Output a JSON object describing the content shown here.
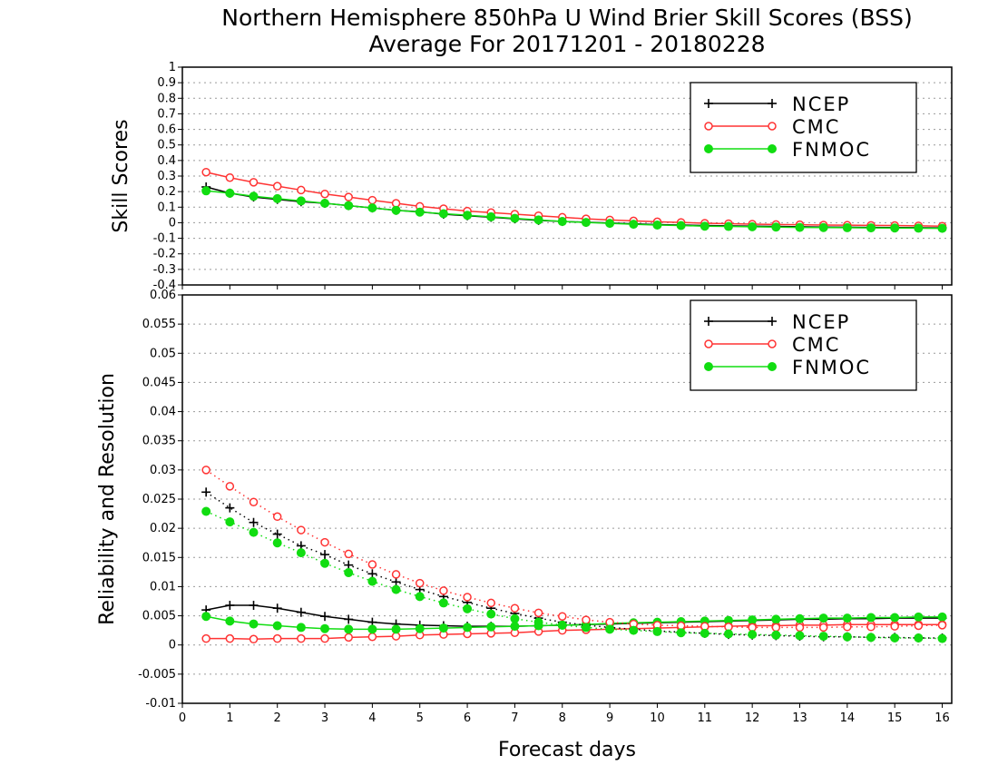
{
  "title_line1": "Northern Hemisphere 850hPa U Wind Brier Skill Scores (BSS)",
  "title_line2": "Average For 20171201 - 20180228",
  "xlabel": "Forecast days",
  "colors": {
    "NCEP": "#000000",
    "CMC": "#ff3333",
    "FNMOC": "#11dd11"
  },
  "chart_data": [
    {
      "type": "line",
      "ylabel": "Skill Scores",
      "xlim": [
        0,
        16.2
      ],
      "ylim": [
        -0.4,
        1
      ],
      "x_ticks": [
        0,
        1,
        2,
        3,
        4,
        5,
        6,
        7,
        8,
        9,
        10,
        11,
        12,
        13,
        14,
        15,
        16
      ],
      "y_ticks": [
        -0.4,
        -0.3,
        -0.2,
        -0.1,
        0,
        0.1,
        0.2,
        0.3,
        0.4,
        0.5,
        0.6,
        0.7,
        0.8,
        0.9,
        1
      ],
      "y_tick_labels": [
        "-0.4",
        "-0.3",
        "-0.2",
        "-0.1",
        "0",
        "0.1",
        "0.2",
        "0.3",
        "0.4",
        "0.5",
        "0.6",
        "0.7",
        "0.8",
        "0.9",
        "1"
      ],
      "grid": true,
      "legend": "top-right",
      "x": [
        0.5,
        1,
        1.5,
        2,
        2.5,
        3,
        3.5,
        4,
        4.5,
        5,
        5.5,
        6,
        6.5,
        7,
        7.5,
        8,
        8.5,
        9,
        9.5,
        10,
        10.5,
        11,
        11.5,
        12,
        12.5,
        13,
        13.5,
        14,
        14.5,
        15,
        15.5,
        16
      ],
      "series": [
        {
          "name": "NCEP",
          "marker": "plus",
          "style": "solid",
          "values": [
            0.23,
            0.19,
            0.165,
            0.15,
            0.135,
            0.125,
            0.11,
            0.095,
            0.08,
            0.07,
            0.055,
            0.045,
            0.035,
            0.025,
            0.015,
            0.008,
            0.003,
            -0.002,
            -0.007,
            -0.012,
            -0.015,
            -0.018,
            -0.02,
            -0.022,
            -0.024,
            -0.026,
            -0.028,
            -0.029,
            -0.03,
            -0.031,
            -0.032,
            -0.033
          ]
        },
        {
          "name": "CMC",
          "marker": "circle-open",
          "style": "solid",
          "values": [
            0.325,
            0.29,
            0.26,
            0.235,
            0.21,
            0.185,
            0.165,
            0.145,
            0.125,
            0.105,
            0.09,
            0.075,
            0.065,
            0.055,
            0.045,
            0.035,
            0.025,
            0.018,
            0.012,
            0.006,
            0.002,
            -0.003,
            -0.006,
            -0.009,
            -0.011,
            -0.013,
            -0.015,
            -0.016,
            -0.017,
            -0.018,
            -0.02,
            -0.022
          ]
        },
        {
          "name": "FNMOC",
          "marker": "circle-filled",
          "style": "solid",
          "values": [
            0.205,
            0.19,
            0.17,
            0.155,
            0.14,
            0.125,
            0.11,
            0.095,
            0.08,
            0.068,
            0.058,
            0.048,
            0.038,
            0.028,
            0.018,
            0.008,
            0.002,
            -0.004,
            -0.01,
            -0.015,
            -0.018,
            -0.022,
            -0.024,
            -0.026,
            -0.028,
            -0.03,
            -0.031,
            -0.032,
            -0.033,
            -0.034,
            -0.035,
            -0.036
          ]
        }
      ]
    },
    {
      "type": "line",
      "ylabel": "Reliability and Resolution",
      "xlim": [
        0,
        16.2
      ],
      "ylim": [
        -0.01,
        0.06
      ],
      "x_ticks": [
        0,
        1,
        2,
        3,
        4,
        5,
        6,
        7,
        8,
        9,
        10,
        11,
        12,
        13,
        14,
        15,
        16
      ],
      "y_ticks": [
        -0.01,
        -0.005,
        0,
        0.005,
        0.01,
        0.015,
        0.02,
        0.025,
        0.03,
        0.035,
        0.04,
        0.045,
        0.05,
        0.055,
        0.06
      ],
      "y_tick_labels": [
        "-0.01",
        "-0.005",
        "0",
        "0.005",
        "0.01",
        "0.015",
        "0.02",
        "0.025",
        "0.03",
        "0.035",
        "0.04",
        "0.045",
        "0.05",
        "0.055",
        "0.06"
      ],
      "grid": true,
      "legend": "top-right",
      "x": [
        0.5,
        1,
        1.5,
        2,
        2.5,
        3,
        3.5,
        4,
        4.5,
        5,
        5.5,
        6,
        6.5,
        7,
        7.5,
        8,
        8.5,
        9,
        9.5,
        10,
        10.5,
        11,
        11.5,
        12,
        12.5,
        13,
        13.5,
        14,
        14.5,
        15,
        15.5,
        16
      ],
      "series": [
        {
          "name": "NCEP",
          "marker": "plus",
          "style": "solid",
          "values": [
            0.006,
            0.0068,
            0.0068,
            0.0063,
            0.0056,
            0.0049,
            0.0044,
            0.0039,
            0.0036,
            0.0034,
            0.0033,
            0.0032,
            0.0032,
            0.0032,
            0.0033,
            0.0034,
            0.0035,
            0.0036,
            0.0037,
            0.0038,
            0.0039,
            0.004,
            0.0041,
            0.0042,
            0.0043,
            0.0044,
            0.0044,
            0.0045,
            0.0045,
            0.0046,
            0.0046,
            0.0046
          ]
        },
        {
          "name": "CMC",
          "marker": "circle-open",
          "style": "solid",
          "values": [
            0.0011,
            0.0011,
            0.001,
            0.0011,
            0.0011,
            0.0011,
            0.0013,
            0.0014,
            0.0015,
            0.0017,
            0.0018,
            0.0019,
            0.002,
            0.0021,
            0.0023,
            0.0025,
            0.0026,
            0.0027,
            0.0028,
            0.0029,
            0.003,
            0.0031,
            0.0032,
            0.0033,
            0.0033,
            0.0034,
            0.0034,
            0.0035,
            0.0035,
            0.0035,
            0.0035,
            0.0035
          ]
        },
        {
          "name": "FNMOC",
          "marker": "circle-filled",
          "style": "solid",
          "values": [
            0.0049,
            0.0041,
            0.0036,
            0.0033,
            0.003,
            0.0028,
            0.0027,
            0.0027,
            0.0027,
            0.0028,
            0.0029,
            0.003,
            0.0031,
            0.0032,
            0.0033,
            0.0034,
            0.0035,
            0.0037,
            0.0038,
            0.0039,
            0.004,
            0.0041,
            0.0042,
            0.0043,
            0.0044,
            0.0045,
            0.0046,
            0.0046,
            0.0047,
            0.0047,
            0.0048,
            0.0048
          ]
        },
        {
          "name": "NCEP",
          "marker": "plus",
          "style": "dotted",
          "in_legend": false,
          "values": [
            0.0262,
            0.0235,
            0.021,
            0.019,
            0.017,
            0.0155,
            0.0137,
            0.0122,
            0.0108,
            0.0095,
            0.0083,
            0.0073,
            0.0063,
            0.0054,
            0.0046,
            0.0039,
            0.0034,
            0.003,
            0.0027,
            0.0024,
            0.0022,
            0.002,
            0.0018,
            0.0017,
            0.0016,
            0.0015,
            0.0014,
            0.0014,
            0.0013,
            0.0013,
            0.0012,
            0.0012
          ]
        },
        {
          "name": "CMC",
          "marker": "circle-open",
          "style": "dotted",
          "in_legend": false,
          "values": [
            0.03,
            0.0272,
            0.0245,
            0.022,
            0.0197,
            0.0176,
            0.0156,
            0.0138,
            0.0121,
            0.0106,
            0.0093,
            0.0082,
            0.0072,
            0.0063,
            0.0055,
            0.0049,
            0.0043,
            0.0039,
            0.0036,
            0.0034,
            0.0033,
            0.0032,
            0.0031,
            0.003,
            0.003,
            0.003,
            0.003,
            0.0031,
            0.0031,
            0.0032,
            0.0033,
            0.0034
          ]
        },
        {
          "name": "FNMOC",
          "marker": "circle-filled",
          "style": "dotted",
          "in_legend": false,
          "values": [
            0.0229,
            0.0211,
            0.0193,
            0.0175,
            0.0158,
            0.014,
            0.0124,
            0.0109,
            0.0095,
            0.0083,
            0.0072,
            0.0062,
            0.0053,
            0.0045,
            0.0039,
            0.0034,
            0.003,
            0.0027,
            0.0025,
            0.0023,
            0.0021,
            0.002,
            0.0019,
            0.0018,
            0.0017,
            0.0016,
            0.0015,
            0.0014,
            0.0013,
            0.0012,
            0.0012,
            0.0011
          ]
        }
      ]
    }
  ]
}
